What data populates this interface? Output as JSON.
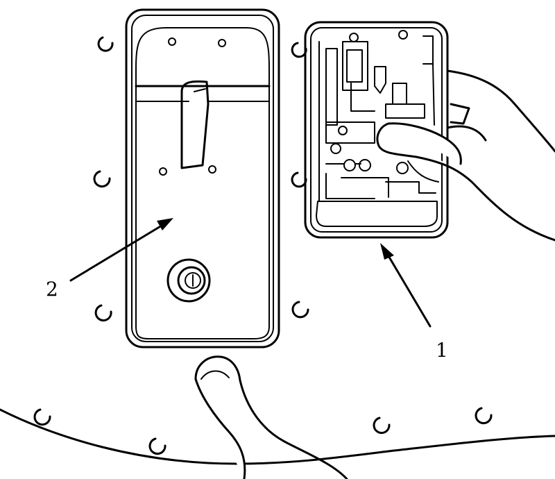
{
  "callouts": [
    {
      "id": "1",
      "label": "1"
    },
    {
      "id": "2",
      "label": "2"
    }
  ],
  "colors": {
    "ink": "#000000",
    "paper": "#ffffff"
  }
}
